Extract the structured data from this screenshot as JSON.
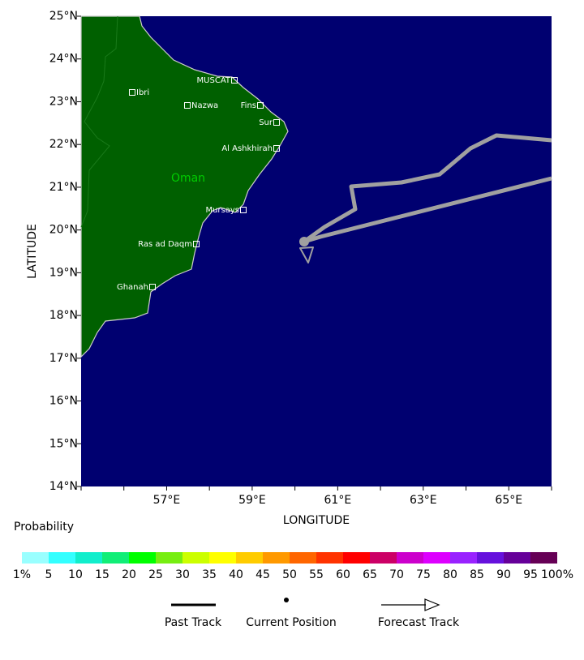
{
  "map": {
    "xlabel": "LONGITUDE",
    "ylabel": "LATITUDE",
    "lat_labels": [
      "14°N",
      "15°N",
      "16°N",
      "17°N",
      "18°N",
      "19°N",
      "20°N",
      "21°N",
      "22°N",
      "23°N",
      "24°N",
      "25°N"
    ],
    "lon_labels": [
      "57°E",
      "59°E",
      "61°E",
      "63°E",
      "65°E"
    ],
    "country": "Oman",
    "cities": [
      "MUSCAT",
      "Ibri",
      "Nazwa",
      "Fins",
      "Sur",
      "Al Ashkhirah",
      "Mursays",
      "Ras ad Daqm",
      "Ghanah"
    ],
    "ocean_color": "#000070",
    "land_color": "#006000",
    "track_color": "#a0a0a0"
  },
  "colorbar": {
    "title": "Probability",
    "labels": [
      "1%",
      "5",
      "10",
      "15",
      "20",
      "25",
      "30",
      "35",
      "40",
      "45",
      "50",
      "55",
      "60",
      "65",
      "70",
      "75",
      "80",
      "85",
      "90",
      "95",
      "100%"
    ],
    "colors": [
      "#99ffff",
      "#33ffff",
      "#11eecc",
      "#11ee77",
      "#00ff00",
      "#77ee11",
      "#ccff00",
      "#ffff00",
      "#ffcc00",
      "#ff9900",
      "#ff6600",
      "#ff3300",
      "#ff0000",
      "#cc0066",
      "#cc00cc",
      "#dd00ff",
      "#9922ff",
      "#6611dd",
      "#660099",
      "#660055"
    ]
  },
  "legend": [
    "Past Track",
    "Current Position",
    "Forecast Track"
  ]
}
